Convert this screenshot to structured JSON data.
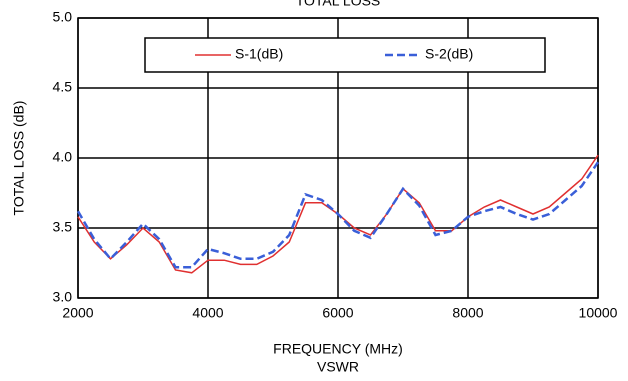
{
  "chart_data": {
    "type": "line",
    "title": "TOTAL LOSS",
    "subtitle": "VSWR",
    "x_label": "FREQUENCY (MHz)",
    "y_label": "TOTAL LOSS (dB)",
    "x": [
      2000,
      2250,
      2500,
      2750,
      3000,
      3250,
      3500,
      3750,
      4000,
      4250,
      4500,
      4750,
      5000,
      5250,
      5500,
      5750,
      6000,
      6250,
      6500,
      6750,
      7000,
      7250,
      7500,
      7750,
      8000,
      8250,
      8500,
      8750,
      9000,
      9250,
      9500,
      9750,
      10000
    ],
    "series": [
      {
        "name": "S-1(dB)",
        "color": "#e03030",
        "dash": false,
        "values": [
          3.58,
          3.4,
          3.28,
          3.38,
          3.5,
          3.4,
          3.2,
          3.18,
          3.27,
          3.27,
          3.24,
          3.24,
          3.3,
          3.4,
          3.68,
          3.68,
          3.6,
          3.5,
          3.45,
          3.6,
          3.78,
          3.68,
          3.48,
          3.48,
          3.58,
          3.65,
          3.7,
          3.65,
          3.6,
          3.65,
          3.75,
          3.85,
          4.02
        ]
      },
      {
        "name": "S-2(dB)",
        "color": "#3a5fd8",
        "dash": true,
        "values": [
          3.62,
          3.42,
          3.28,
          3.4,
          3.53,
          3.42,
          3.22,
          3.22,
          3.35,
          3.32,
          3.28,
          3.28,
          3.33,
          3.45,
          3.74,
          3.7,
          3.6,
          3.48,
          3.43,
          3.6,
          3.78,
          3.66,
          3.45,
          3.48,
          3.58,
          3.62,
          3.65,
          3.6,
          3.56,
          3.6,
          3.7,
          3.8,
          3.97
        ]
      }
    ],
    "xlim": [
      2000,
      10000
    ],
    "xticks": [
      2000,
      4000,
      6000,
      8000,
      10000
    ],
    "ylim": [
      3,
      5
    ],
    "yticks": [
      {
        "value": 3,
        "label": "3.0"
      },
      3.5,
      {
        "value": 4,
        "label": "4.0"
      },
      4.5,
      {
        "value": 5,
        "label": "5.0"
      }
    ],
    "grid": true,
    "legend_loc": "upper center"
  }
}
